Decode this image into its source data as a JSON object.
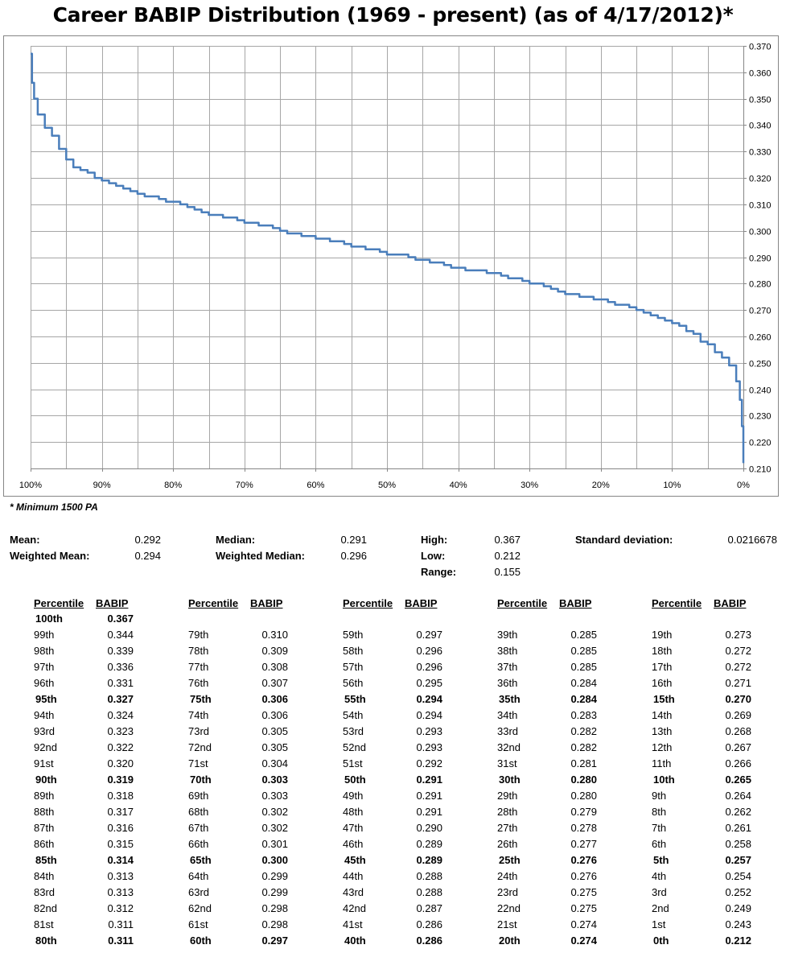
{
  "title": "Career BABIP Distribution (1969 - present) (as of 4/17/2012)*",
  "footnote": "* Minimum 1500 PA",
  "stats": {
    "mean_label": "Mean:",
    "mean": "0.292",
    "wmean_label": "Weighted Mean:",
    "wmean": "0.294",
    "median_label": "Median:",
    "median": "0.291",
    "wmedian_label": "Weighted Median:",
    "wmedian": "0.296",
    "high_label": "High:",
    "high": "0.367",
    "low_label": "Low:",
    "low": "0.212",
    "range_label": "Range:",
    "range": "0.155",
    "sd_label": "Standard deviation:",
    "sd": "0.0216678"
  },
  "table": {
    "col_percentile": "Percentile",
    "col_babip": "BABIP",
    "columns": [
      [
        [
          "100th",
          "0.367"
        ],
        [
          "99th",
          "0.344"
        ],
        [
          "98th",
          "0.339"
        ],
        [
          "97th",
          "0.336"
        ],
        [
          "96th",
          "0.331"
        ],
        [
          "95th",
          "0.327"
        ],
        [
          "94th",
          "0.324"
        ],
        [
          "93rd",
          "0.323"
        ],
        [
          "92nd",
          "0.322"
        ],
        [
          "91st",
          "0.320"
        ],
        [
          "90th",
          "0.319"
        ],
        [
          "89th",
          "0.318"
        ],
        [
          "88th",
          "0.317"
        ],
        [
          "87th",
          "0.316"
        ],
        [
          "86th",
          "0.315"
        ],
        [
          "85th",
          "0.314"
        ],
        [
          "84th",
          "0.313"
        ],
        [
          "83rd",
          "0.313"
        ],
        [
          "82nd",
          "0.312"
        ],
        [
          "81st",
          "0.311"
        ],
        [
          "80th",
          "0.311"
        ]
      ],
      [
        [
          "79th",
          "0.310"
        ],
        [
          "78th",
          "0.309"
        ],
        [
          "77th",
          "0.308"
        ],
        [
          "76th",
          "0.307"
        ],
        [
          "75th",
          "0.306"
        ],
        [
          "74th",
          "0.306"
        ],
        [
          "73rd",
          "0.305"
        ],
        [
          "72nd",
          "0.305"
        ],
        [
          "71st",
          "0.304"
        ],
        [
          "70th",
          "0.303"
        ],
        [
          "69th",
          "0.303"
        ],
        [
          "68th",
          "0.302"
        ],
        [
          "67th",
          "0.302"
        ],
        [
          "66th",
          "0.301"
        ],
        [
          "65th",
          "0.300"
        ],
        [
          "64th",
          "0.299"
        ],
        [
          "63rd",
          "0.299"
        ],
        [
          "62nd",
          "0.298"
        ],
        [
          "61st",
          "0.298"
        ],
        [
          "60th",
          "0.297"
        ]
      ],
      [
        [
          "59th",
          "0.297"
        ],
        [
          "58th",
          "0.296"
        ],
        [
          "57th",
          "0.296"
        ],
        [
          "56th",
          "0.295"
        ],
        [
          "55th",
          "0.294"
        ],
        [
          "54th",
          "0.294"
        ],
        [
          "53rd",
          "0.293"
        ],
        [
          "52nd",
          "0.293"
        ],
        [
          "51st",
          "0.292"
        ],
        [
          "50th",
          "0.291"
        ],
        [
          "49th",
          "0.291"
        ],
        [
          "48th",
          "0.291"
        ],
        [
          "47th",
          "0.290"
        ],
        [
          "46th",
          "0.289"
        ],
        [
          "45th",
          "0.289"
        ],
        [
          "44th",
          "0.288"
        ],
        [
          "43rd",
          "0.288"
        ],
        [
          "42nd",
          "0.287"
        ],
        [
          "41st",
          "0.286"
        ],
        [
          "40th",
          "0.286"
        ]
      ],
      [
        [
          "39th",
          "0.285"
        ],
        [
          "38th",
          "0.285"
        ],
        [
          "37th",
          "0.285"
        ],
        [
          "36th",
          "0.284"
        ],
        [
          "35th",
          "0.284"
        ],
        [
          "34th",
          "0.283"
        ],
        [
          "33rd",
          "0.282"
        ],
        [
          "32nd",
          "0.282"
        ],
        [
          "31st",
          "0.281"
        ],
        [
          "30th",
          "0.280"
        ],
        [
          "29th",
          "0.280"
        ],
        [
          "28th",
          "0.279"
        ],
        [
          "27th",
          "0.278"
        ],
        [
          "26th",
          "0.277"
        ],
        [
          "25th",
          "0.276"
        ],
        [
          "24th",
          "0.276"
        ],
        [
          "23rd",
          "0.275"
        ],
        [
          "22nd",
          "0.275"
        ],
        [
          "21st",
          "0.274"
        ],
        [
          "20th",
          "0.274"
        ]
      ],
      [
        [
          "19th",
          "0.273"
        ],
        [
          "18th",
          "0.272"
        ],
        [
          "17th",
          "0.272"
        ],
        [
          "16th",
          "0.271"
        ],
        [
          "15th",
          "0.270"
        ],
        [
          "14th",
          "0.269"
        ],
        [
          "13th",
          "0.268"
        ],
        [
          "12th",
          "0.267"
        ],
        [
          "11th",
          "0.266"
        ],
        [
          "10th",
          "0.265"
        ],
        [
          "9th",
          "0.264"
        ],
        [
          "8th",
          "0.262"
        ],
        [
          "7th",
          "0.261"
        ],
        [
          "6th",
          "0.258"
        ],
        [
          "5th",
          "0.257"
        ],
        [
          "4th",
          "0.254"
        ],
        [
          "3rd",
          "0.252"
        ],
        [
          "2nd",
          "0.249"
        ],
        [
          "1st",
          "0.243"
        ],
        [
          "0th",
          "0.212"
        ]
      ]
    ]
  },
  "chart_data": {
    "type": "line",
    "title": "Career BABIP Distribution (1969 - present) (as of 4/17/2012)*",
    "xlabel": "",
    "ylabel": "",
    "x_ticks": [
      "100%",
      "90%",
      "80%",
      "70%",
      "60%",
      "50%",
      "40%",
      "30%",
      "20%",
      "10%",
      "0%"
    ],
    "y_ticks": [
      "0.210",
      "0.220",
      "0.230",
      "0.240",
      "0.250",
      "0.260",
      "0.270",
      "0.280",
      "0.290",
      "0.300",
      "0.310",
      "0.320",
      "0.330",
      "0.340",
      "0.350",
      "0.360",
      "0.370"
    ],
    "xlim": [
      100,
      0
    ],
    "ylim": [
      0.21,
      0.37
    ],
    "grid": true,
    "legend": "none",
    "line_color": "#4a7ebb",
    "x": [
      100,
      99.8,
      99.5,
      99,
      98,
      97,
      96,
      95,
      94,
      93,
      92,
      91,
      90,
      89,
      88,
      87,
      86,
      85,
      84,
      83,
      82,
      81,
      80,
      79,
      78,
      77,
      76,
      75,
      74,
      73,
      72,
      71,
      70,
      69,
      68,
      67,
      66,
      65,
      64,
      63,
      62,
      61,
      60,
      59,
      58,
      57,
      56,
      55,
      54,
      53,
      52,
      51,
      50,
      49,
      48,
      47,
      46,
      45,
      44,
      43,
      42,
      41,
      40,
      39,
      38,
      37,
      36,
      35,
      34,
      33,
      32,
      31,
      30,
      29,
      28,
      27,
      26,
      25,
      24,
      23,
      22,
      21,
      20,
      19,
      18,
      17,
      16,
      15,
      14,
      13,
      12,
      11,
      10,
      9,
      8,
      7,
      6,
      5,
      4,
      3,
      2,
      1,
      0.5,
      0.2,
      0
    ],
    "y": [
      0.367,
      0.356,
      0.35,
      0.344,
      0.339,
      0.336,
      0.331,
      0.327,
      0.324,
      0.323,
      0.322,
      0.32,
      0.319,
      0.318,
      0.317,
      0.316,
      0.315,
      0.314,
      0.313,
      0.313,
      0.312,
      0.311,
      0.311,
      0.31,
      0.309,
      0.308,
      0.307,
      0.306,
      0.306,
      0.305,
      0.305,
      0.304,
      0.303,
      0.303,
      0.302,
      0.302,
      0.301,
      0.3,
      0.299,
      0.299,
      0.298,
      0.298,
      0.297,
      0.297,
      0.296,
      0.296,
      0.295,
      0.294,
      0.294,
      0.293,
      0.293,
      0.292,
      0.291,
      0.291,
      0.291,
      0.29,
      0.289,
      0.289,
      0.288,
      0.288,
      0.287,
      0.286,
      0.286,
      0.285,
      0.285,
      0.285,
      0.284,
      0.284,
      0.283,
      0.282,
      0.282,
      0.281,
      0.28,
      0.28,
      0.279,
      0.278,
      0.277,
      0.276,
      0.276,
      0.275,
      0.275,
      0.274,
      0.274,
      0.273,
      0.272,
      0.272,
      0.271,
      0.27,
      0.269,
      0.268,
      0.267,
      0.266,
      0.265,
      0.264,
      0.262,
      0.261,
      0.258,
      0.257,
      0.254,
      0.252,
      0.249,
      0.243,
      0.236,
      0.226,
      0.212
    ]
  }
}
